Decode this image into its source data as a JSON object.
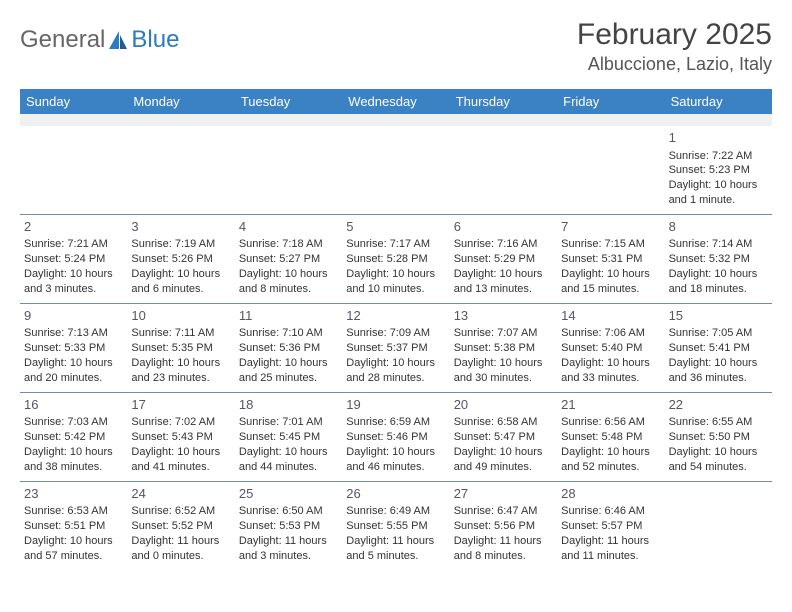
{
  "logo": {
    "part1": "General",
    "part2": "Blue"
  },
  "title": "February 2025",
  "location": "Albuccione, Lazio, Italy",
  "colors": {
    "header_bg": "#3b82c4",
    "header_fg": "#ffffff",
    "divider": "#7a8aa0",
    "text": "#333333",
    "empty_row_bg": "#eef0f2"
  },
  "day_headers": [
    "Sunday",
    "Monday",
    "Tuesday",
    "Wednesday",
    "Thursday",
    "Friday",
    "Saturday"
  ],
  "weeks": [
    [
      null,
      null,
      null,
      null,
      null,
      null,
      {
        "n": "1",
        "sr": "Sunrise: 7:22 AM",
        "ss": "Sunset: 5:23 PM",
        "d1": "Daylight: 10 hours",
        "d2": "and 1 minute."
      }
    ],
    [
      {
        "n": "2",
        "sr": "Sunrise: 7:21 AM",
        "ss": "Sunset: 5:24 PM",
        "d1": "Daylight: 10 hours",
        "d2": "and 3 minutes."
      },
      {
        "n": "3",
        "sr": "Sunrise: 7:19 AM",
        "ss": "Sunset: 5:26 PM",
        "d1": "Daylight: 10 hours",
        "d2": "and 6 minutes."
      },
      {
        "n": "4",
        "sr": "Sunrise: 7:18 AM",
        "ss": "Sunset: 5:27 PM",
        "d1": "Daylight: 10 hours",
        "d2": "and 8 minutes."
      },
      {
        "n": "5",
        "sr": "Sunrise: 7:17 AM",
        "ss": "Sunset: 5:28 PM",
        "d1": "Daylight: 10 hours",
        "d2": "and 10 minutes."
      },
      {
        "n": "6",
        "sr": "Sunrise: 7:16 AM",
        "ss": "Sunset: 5:29 PM",
        "d1": "Daylight: 10 hours",
        "d2": "and 13 minutes."
      },
      {
        "n": "7",
        "sr": "Sunrise: 7:15 AM",
        "ss": "Sunset: 5:31 PM",
        "d1": "Daylight: 10 hours",
        "d2": "and 15 minutes."
      },
      {
        "n": "8",
        "sr": "Sunrise: 7:14 AM",
        "ss": "Sunset: 5:32 PM",
        "d1": "Daylight: 10 hours",
        "d2": "and 18 minutes."
      }
    ],
    [
      {
        "n": "9",
        "sr": "Sunrise: 7:13 AM",
        "ss": "Sunset: 5:33 PM",
        "d1": "Daylight: 10 hours",
        "d2": "and 20 minutes."
      },
      {
        "n": "10",
        "sr": "Sunrise: 7:11 AM",
        "ss": "Sunset: 5:35 PM",
        "d1": "Daylight: 10 hours",
        "d2": "and 23 minutes."
      },
      {
        "n": "11",
        "sr": "Sunrise: 7:10 AM",
        "ss": "Sunset: 5:36 PM",
        "d1": "Daylight: 10 hours",
        "d2": "and 25 minutes."
      },
      {
        "n": "12",
        "sr": "Sunrise: 7:09 AM",
        "ss": "Sunset: 5:37 PM",
        "d1": "Daylight: 10 hours",
        "d2": "and 28 minutes."
      },
      {
        "n": "13",
        "sr": "Sunrise: 7:07 AM",
        "ss": "Sunset: 5:38 PM",
        "d1": "Daylight: 10 hours",
        "d2": "and 30 minutes."
      },
      {
        "n": "14",
        "sr": "Sunrise: 7:06 AM",
        "ss": "Sunset: 5:40 PM",
        "d1": "Daylight: 10 hours",
        "d2": "and 33 minutes."
      },
      {
        "n": "15",
        "sr": "Sunrise: 7:05 AM",
        "ss": "Sunset: 5:41 PM",
        "d1": "Daylight: 10 hours",
        "d2": "and 36 minutes."
      }
    ],
    [
      {
        "n": "16",
        "sr": "Sunrise: 7:03 AM",
        "ss": "Sunset: 5:42 PM",
        "d1": "Daylight: 10 hours",
        "d2": "and 38 minutes."
      },
      {
        "n": "17",
        "sr": "Sunrise: 7:02 AM",
        "ss": "Sunset: 5:43 PM",
        "d1": "Daylight: 10 hours",
        "d2": "and 41 minutes."
      },
      {
        "n": "18",
        "sr": "Sunrise: 7:01 AM",
        "ss": "Sunset: 5:45 PM",
        "d1": "Daylight: 10 hours",
        "d2": "and 44 minutes."
      },
      {
        "n": "19",
        "sr": "Sunrise: 6:59 AM",
        "ss": "Sunset: 5:46 PM",
        "d1": "Daylight: 10 hours",
        "d2": "and 46 minutes."
      },
      {
        "n": "20",
        "sr": "Sunrise: 6:58 AM",
        "ss": "Sunset: 5:47 PM",
        "d1": "Daylight: 10 hours",
        "d2": "and 49 minutes."
      },
      {
        "n": "21",
        "sr": "Sunrise: 6:56 AM",
        "ss": "Sunset: 5:48 PM",
        "d1": "Daylight: 10 hours",
        "d2": "and 52 minutes."
      },
      {
        "n": "22",
        "sr": "Sunrise: 6:55 AM",
        "ss": "Sunset: 5:50 PM",
        "d1": "Daylight: 10 hours",
        "d2": "and 54 minutes."
      }
    ],
    [
      {
        "n": "23",
        "sr": "Sunrise: 6:53 AM",
        "ss": "Sunset: 5:51 PM",
        "d1": "Daylight: 10 hours",
        "d2": "and 57 minutes."
      },
      {
        "n": "24",
        "sr": "Sunrise: 6:52 AM",
        "ss": "Sunset: 5:52 PM",
        "d1": "Daylight: 11 hours",
        "d2": "and 0 minutes."
      },
      {
        "n": "25",
        "sr": "Sunrise: 6:50 AM",
        "ss": "Sunset: 5:53 PM",
        "d1": "Daylight: 11 hours",
        "d2": "and 3 minutes."
      },
      {
        "n": "26",
        "sr": "Sunrise: 6:49 AM",
        "ss": "Sunset: 5:55 PM",
        "d1": "Daylight: 11 hours",
        "d2": "and 5 minutes."
      },
      {
        "n": "27",
        "sr": "Sunrise: 6:47 AM",
        "ss": "Sunset: 5:56 PM",
        "d1": "Daylight: 11 hours",
        "d2": "and 8 minutes."
      },
      {
        "n": "28",
        "sr": "Sunrise: 6:46 AM",
        "ss": "Sunset: 5:57 PM",
        "d1": "Daylight: 11 hours",
        "d2": "and 11 minutes."
      },
      null
    ]
  ]
}
